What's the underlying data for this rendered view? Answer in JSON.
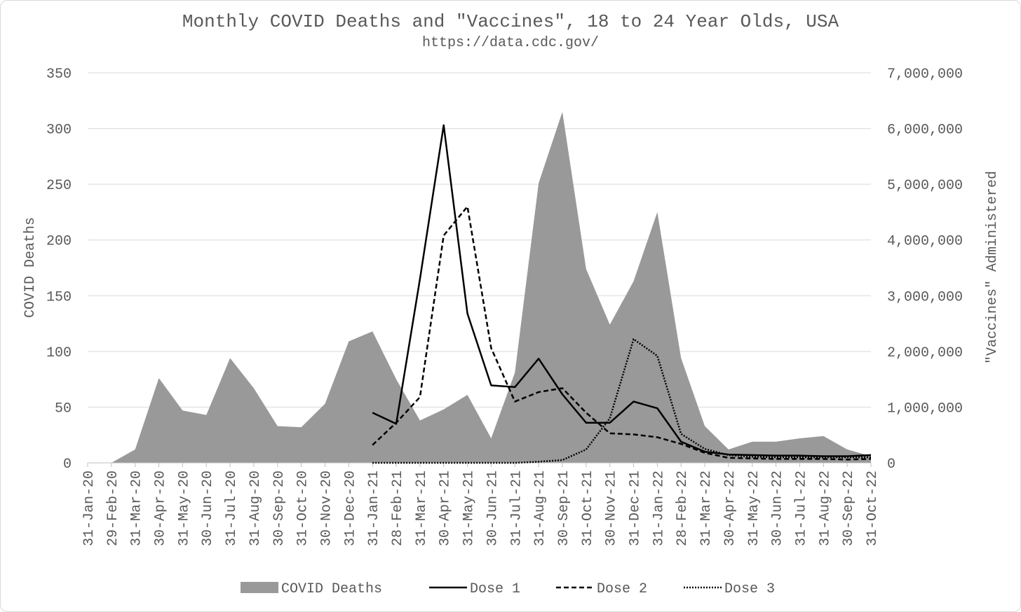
{
  "chart_data": {
    "type": "area",
    "title": "Monthly COVID Deaths and \"Vaccines\", 18 to 24 Year Olds, USA",
    "subtitle": "https://data.cdc.gov/",
    "ylabel": "COVID Deaths",
    "y2label": "\"Vaccines\" Administered",
    "ylim": [
      0,
      350
    ],
    "y2lim": [
      0,
      7000000
    ],
    "yticks": [
      0,
      50,
      100,
      150,
      200,
      250,
      300,
      350
    ],
    "y2ticks": [
      0,
      1000000,
      2000000,
      3000000,
      4000000,
      5000000,
      6000000,
      7000000
    ],
    "y2tick_labels": [
      "0",
      "1,000,000",
      "2,000,000",
      "3,000,000",
      "4,000,000",
      "5,000,000",
      "6,000,000",
      "7,000,000"
    ],
    "categories": [
      "31-Jan-20",
      "29-Feb-20",
      "31-Mar-20",
      "30-Apr-20",
      "31-May-20",
      "30-Jun-20",
      "31-Jul-20",
      "31-Aug-20",
      "30-Sep-20",
      "31-Oct-20",
      "30-Nov-20",
      "31-Dec-20",
      "31-Jan-21",
      "28-Feb-21",
      "31-Mar-21",
      "30-Apr-21",
      "31-May-21",
      "30-Jun-21",
      "31-Jul-21",
      "31-Aug-21",
      "30-Sep-21",
      "31-Oct-21",
      "30-Nov-21",
      "31-Dec-21",
      "31-Jan-22",
      "28-Feb-22",
      "31-Mar-22",
      "30-Apr-22",
      "31-May-22",
      "30-Jun-22",
      "31-Jul-22",
      "31-Aug-22",
      "30-Sep-22",
      "31-Oct-22"
    ],
    "series": [
      {
        "name": "COVID Deaths",
        "type": "area",
        "axis": "left",
        "color": "#999999",
        "values": [
          null,
          0,
          12,
          76,
          47,
          43,
          94,
          67,
          33,
          32,
          53,
          109,
          118,
          75,
          38,
          48,
          61,
          22,
          81,
          251,
          315,
          174,
          124,
          163,
          225,
          94,
          33,
          12,
          19,
          19,
          22,
          24,
          12,
          6
        ]
      },
      {
        "name": "Dose 1",
        "type": "line",
        "axis": "right",
        "color": "#000000",
        "dash": "solid",
        "values": [
          null,
          null,
          null,
          null,
          null,
          null,
          null,
          null,
          null,
          null,
          null,
          null,
          900000,
          700000,
          3300000,
          6060000,
          2680000,
          1390000,
          1360000,
          1870000,
          1230000,
          720000,
          720000,
          1100000,
          980000,
          380000,
          200000,
          150000,
          140000,
          130000,
          130000,
          120000,
          120000,
          140000
        ]
      },
      {
        "name": "Dose 2",
        "type": "line",
        "axis": "right",
        "color": "#000000",
        "dash": "dashed",
        "values": [
          null,
          null,
          null,
          null,
          null,
          null,
          null,
          null,
          null,
          null,
          null,
          null,
          320000,
          720000,
          1180000,
          4080000,
          4600000,
          2060000,
          1100000,
          1270000,
          1340000,
          900000,
          530000,
          510000,
          460000,
          340000,
          180000,
          90000,
          80000,
          70000,
          70000,
          70000,
          60000,
          70000
        ]
      },
      {
        "name": "Dose 3",
        "type": "line",
        "axis": "right",
        "color": "#000000",
        "dash": "dotted",
        "values": [
          null,
          null,
          null,
          null,
          null,
          null,
          null,
          null,
          null,
          null,
          null,
          null,
          0,
          0,
          0,
          0,
          0,
          0,
          0,
          20000,
          50000,
          240000,
          800000,
          2220000,
          1920000,
          520000,
          250000,
          140000,
          110000,
          100000,
          100000,
          100000,
          100000,
          100000
        ]
      }
    ],
    "legend_position": "bottom",
    "grid": true
  }
}
